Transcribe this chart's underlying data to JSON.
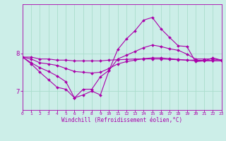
{
  "background_color": "#cceee8",
  "line_color": "#aa00aa",
  "grid_color": "#aaddcc",
  "xlabel": "Windchill (Refroidissement éolien,°C)",
  "xlabel_color": "#aa00aa",
  "tick_color": "#aa00aa",
  "x_ticks": [
    0,
    1,
    2,
    3,
    4,
    5,
    6,
    7,
    8,
    9,
    10,
    11,
    12,
    13,
    14,
    15,
    16,
    17,
    18,
    19,
    20,
    21,
    22,
    23
  ],
  "y_ticks": [
    7,
    8
  ],
  "ylim": [
    6.5,
    9.3
  ],
  "xlim": [
    0,
    23
  ],
  "series": [
    [
      7.9,
      7.9,
      7.85,
      7.85,
      7.82,
      7.82,
      7.8,
      7.8,
      7.8,
      7.8,
      7.82,
      7.83,
      7.84,
      7.85,
      7.85,
      7.85,
      7.85,
      7.84,
      7.83,
      7.82,
      7.82,
      7.81,
      7.81,
      7.8
    ],
    [
      7.9,
      7.85,
      7.75,
      7.72,
      7.68,
      7.6,
      7.52,
      7.5,
      7.48,
      7.5,
      7.6,
      7.72,
      7.78,
      7.82,
      7.86,
      7.88,
      7.88,
      7.86,
      7.84,
      7.82,
      7.8,
      7.8,
      7.8,
      7.8
    ],
    [
      7.9,
      7.75,
      7.62,
      7.52,
      7.4,
      7.25,
      6.82,
      7.05,
      7.05,
      7.38,
      7.55,
      7.85,
      7.95,
      8.05,
      8.15,
      8.22,
      8.18,
      8.12,
      8.08,
      7.98,
      7.85,
      7.85,
      7.85,
      7.82
    ],
    [
      7.9,
      7.72,
      7.5,
      7.3,
      7.1,
      7.05,
      6.82,
      6.9,
      7.0,
      6.9,
      7.55,
      8.1,
      8.38,
      8.6,
      8.88,
      8.95,
      8.65,
      8.42,
      8.2,
      8.18,
      7.78,
      7.8,
      7.88,
      7.82
    ]
  ]
}
